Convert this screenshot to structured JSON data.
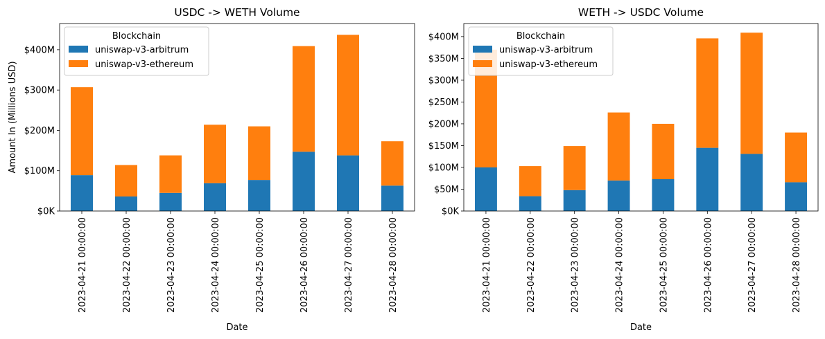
{
  "chart_data": [
    {
      "type": "bar",
      "stacked": true,
      "title": "USDC -> WETH Volume",
      "xlabel": "Date",
      "ylabel": "Amount In (Millions USD)",
      "ylim": [
        0,
        465
      ],
      "yticks": [
        0,
        100,
        200,
        300,
        400
      ],
      "ytick_labels": [
        "$0K",
        "$100M",
        "$200M",
        "$300M",
        "$400M"
      ],
      "categories": [
        "2023-04-21 00:00:00",
        "2023-04-22 00:00:00",
        "2023-04-23 00:00:00",
        "2023-04-24 00:00:00",
        "2023-04-25 00:00:00",
        "2023-04-26 00:00:00",
        "2023-04-27 00:00:00",
        "2023-04-28 00:00:00"
      ],
      "legend": {
        "title": "Blockchain",
        "placement": "top-left"
      },
      "series": [
        {
          "name": "uniswap-v3-arbitrum",
          "color": "#1f77b4",
          "values": [
            89,
            36,
            45,
            69,
            77,
            147,
            138,
            63
          ]
        },
        {
          "name": "uniswap-v3-ethereum",
          "color": "#ff7f0e",
          "values": [
            218,
            78,
            93,
            145,
            133,
            262,
            299,
            110
          ]
        }
      ]
    },
    {
      "type": "bar",
      "stacked": true,
      "title": "WETH -> USDC Volume",
      "xlabel": "Date",
      "ylabel": "",
      "ylim": [
        0,
        430
      ],
      "yticks": [
        0,
        50,
        100,
        150,
        200,
        250,
        300,
        350,
        400
      ],
      "ytick_labels": [
        "$0K",
        "$50M",
        "$100M",
        "$150M",
        "$200M",
        "$250M",
        "$300M",
        "$350M",
        "$400M"
      ],
      "categories": [
        "2023-04-21 00:00:00",
        "2023-04-22 00:00:00",
        "2023-04-23 00:00:00",
        "2023-04-24 00:00:00",
        "2023-04-25 00:00:00",
        "2023-04-26 00:00:00",
        "2023-04-27 00:00:00",
        "2023-04-28 00:00:00"
      ],
      "legend": {
        "title": "Blockchain",
        "placement": "top-left"
      },
      "series": [
        {
          "name": "uniswap-v3-arbitrum",
          "color": "#1f77b4",
          "values": [
            100,
            34,
            48,
            70,
            73,
            145,
            131,
            66
          ]
        },
        {
          "name": "uniswap-v3-ethereum",
          "color": "#ff7f0e",
          "values": [
            270,
            69,
            101,
            156,
            127,
            251,
            278,
            114
          ]
        }
      ]
    }
  ]
}
